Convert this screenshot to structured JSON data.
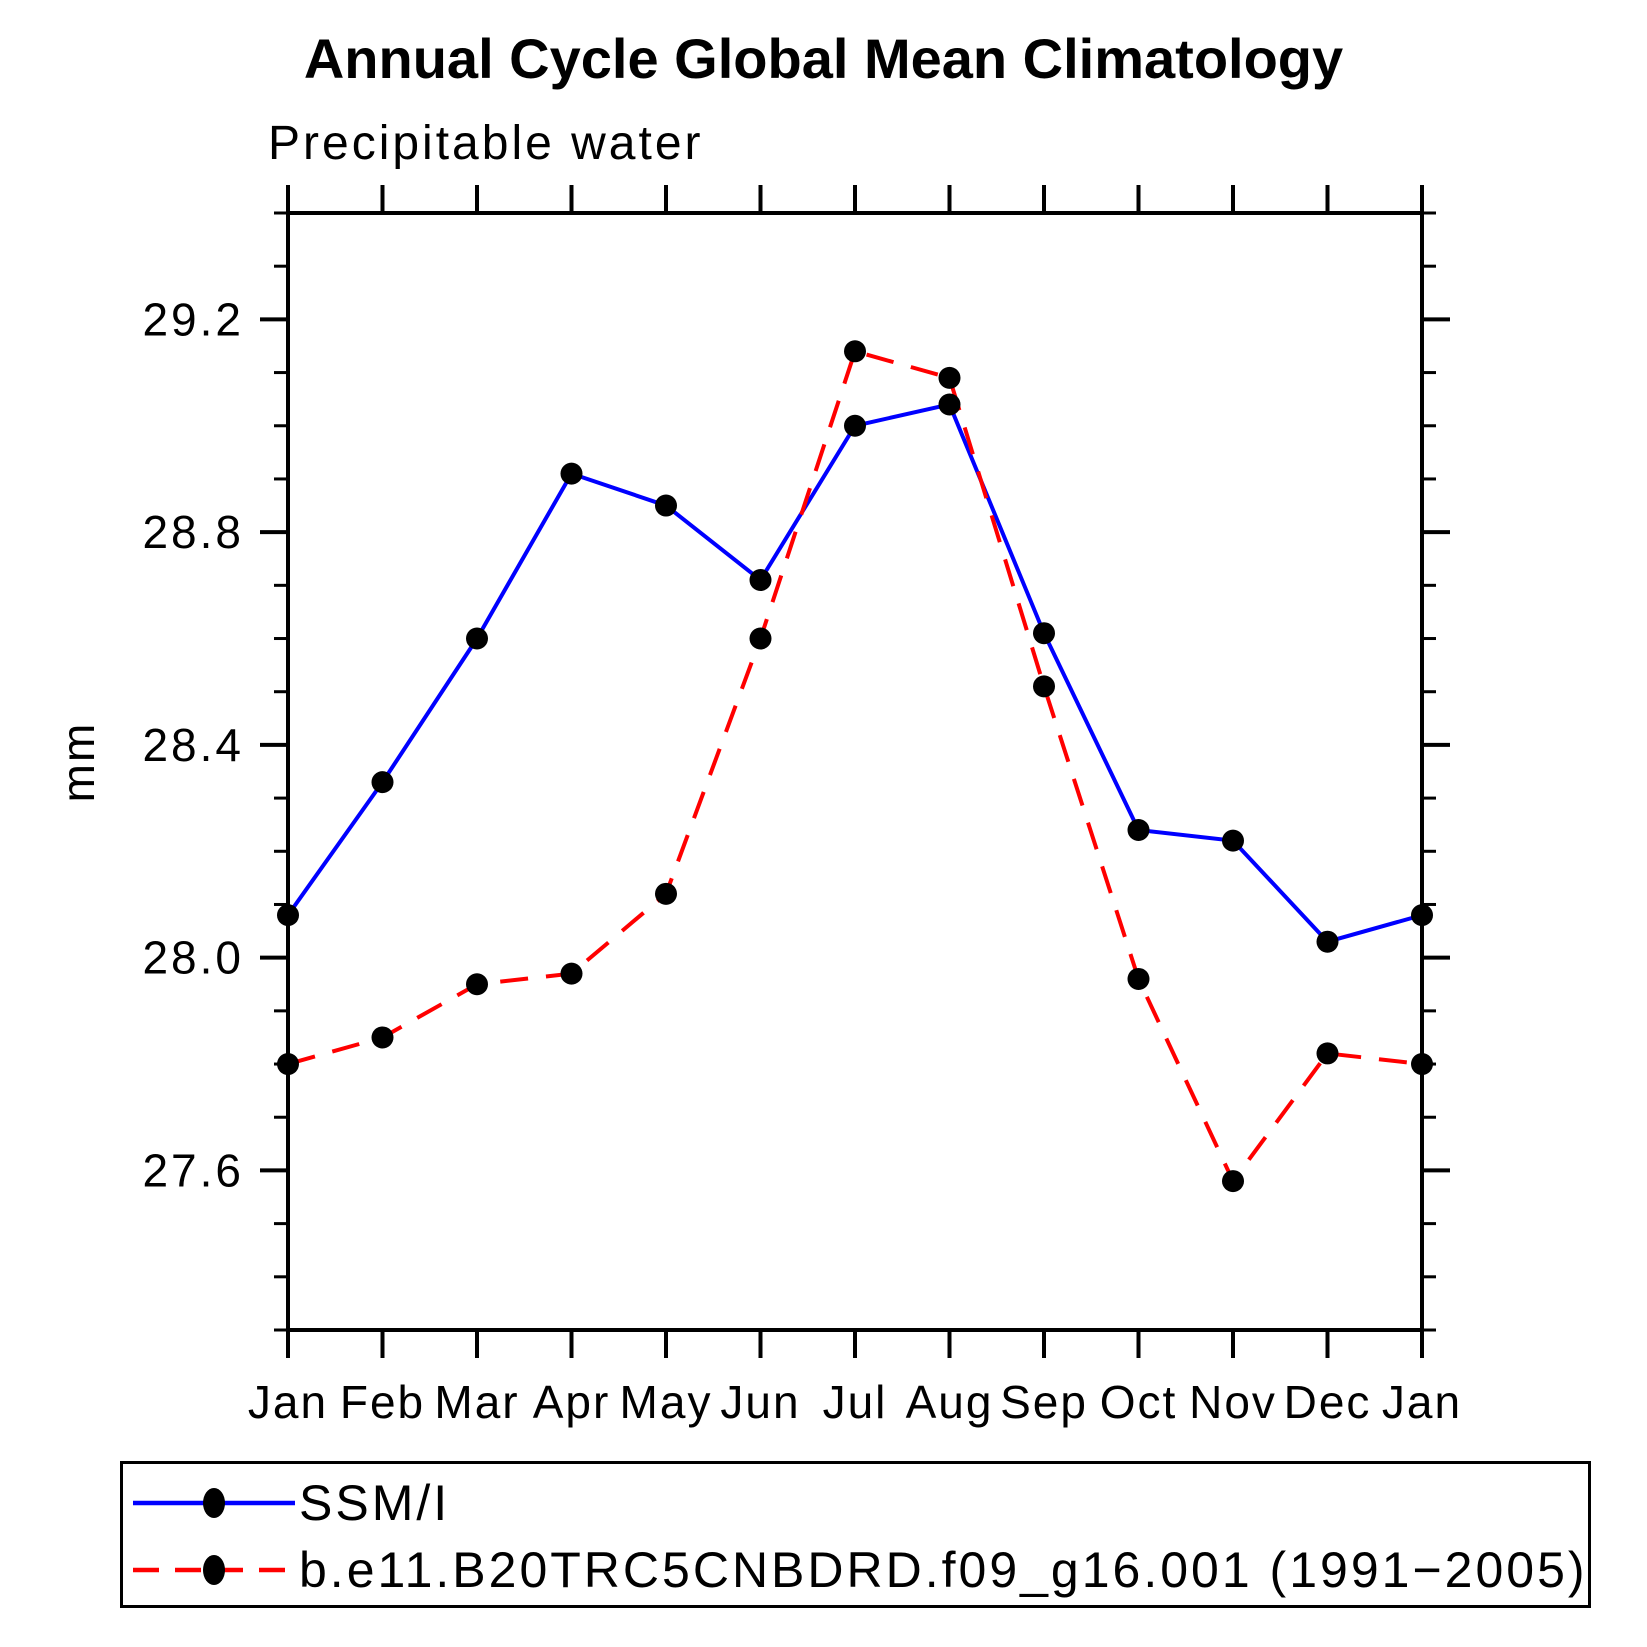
{
  "chart_data": {
    "type": "line",
    "title": "Annual Cycle Global Mean Climatology",
    "subtitle": "Precipitable water",
    "ylabel": "mm",
    "categories": [
      "Jan",
      "Feb",
      "Mar",
      "Apr",
      "May",
      "Jun",
      "Jul",
      "Aug",
      "Sep",
      "Oct",
      "Nov",
      "Dec",
      "Jan"
    ],
    "series": [
      {
        "key": "ssmi",
        "name": "SSM/I",
        "color": "#0000ff",
        "line_style": "solid",
        "marker": "filled-circle",
        "values": [
          28.08,
          28.33,
          28.6,
          28.91,
          28.85,
          28.71,
          29.0,
          29.04,
          28.61,
          28.24,
          28.22,
          28.03,
          28.08
        ]
      },
      {
        "key": "model",
        "name": "b.e11.B20TRC5CNBDRD.f09_g16.001 (1991−2005)",
        "color": "#ff0000",
        "line_style": "dashed",
        "marker": "filled-circle",
        "values": [
          27.8,
          27.85,
          27.95,
          27.97,
          28.12,
          28.6,
          29.14,
          29.09,
          28.51,
          27.96,
          27.58,
          27.82,
          27.8
        ]
      }
    ],
    "marker_color": "#000000",
    "axis_color": "#000000",
    "background_color": "#ffffff",
    "ylim": [
      27.3,
      29.4
    ],
    "yticks_major": [
      29.2,
      28.8,
      28.4,
      28.0,
      27.6
    ],
    "yticks_major_labels": [
      "29.2",
      "28.8",
      "28.4",
      "28.0",
      "27.6"
    ],
    "ytick_minor_step": 0.1,
    "grid": false,
    "legend_position": "bottom-left-box"
  }
}
